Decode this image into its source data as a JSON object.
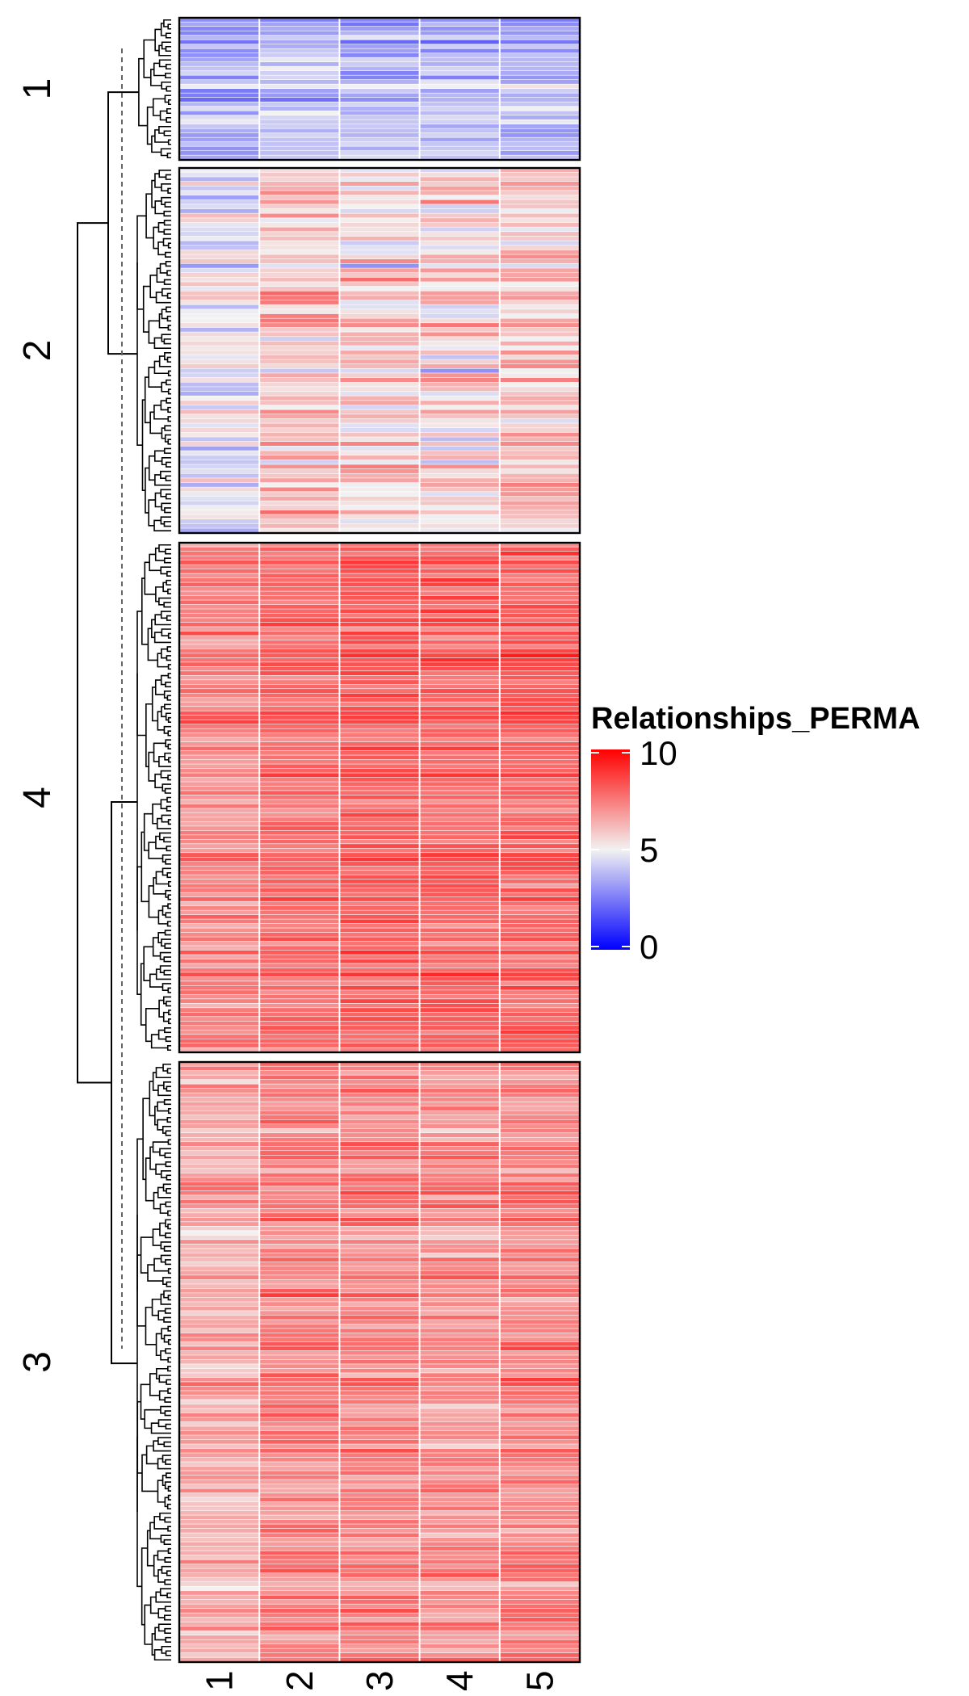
{
  "chart_data": {
    "type": "heatmap",
    "columns": [
      "1",
      "2",
      "3",
      "4",
      "5"
    ],
    "clusters": [
      {
        "label": "1",
        "rows": 32,
        "seed": 11,
        "bias": [
          -1.6,
          -1.1,
          -1.3,
          -1.2,
          -1.4
        ],
        "spread": 1.0
      },
      {
        "label": "2",
        "rows": 80,
        "seed": 23,
        "bias": [
          -0.3,
          0.9,
          0.7,
          0.6,
          1.0
        ],
        "spread": 1.3
      },
      {
        "label": "4",
        "rows": 115,
        "seed": 37,
        "bias": [
          2.3,
          2.8,
          3.0,
          2.9,
          2.9
        ],
        "spread": 0.8
      },
      {
        "label": "3",
        "rows": 135,
        "seed": 51,
        "bias": [
          1.4,
          2.2,
          2.2,
          2.0,
          2.2
        ],
        "spread": 0.9
      }
    ],
    "color_scale": {
      "title": "Relationships_PERMA",
      "min": 0,
      "mid": 5,
      "max": 10,
      "ticks": [
        0,
        5,
        10
      ],
      "low_color": "#0000ff",
      "mid_color": "#f2f2f2",
      "high_color": "#ff0000"
    },
    "row_dendrogram": true,
    "cluster_split_line": "dashed",
    "legend_placement": "right"
  }
}
